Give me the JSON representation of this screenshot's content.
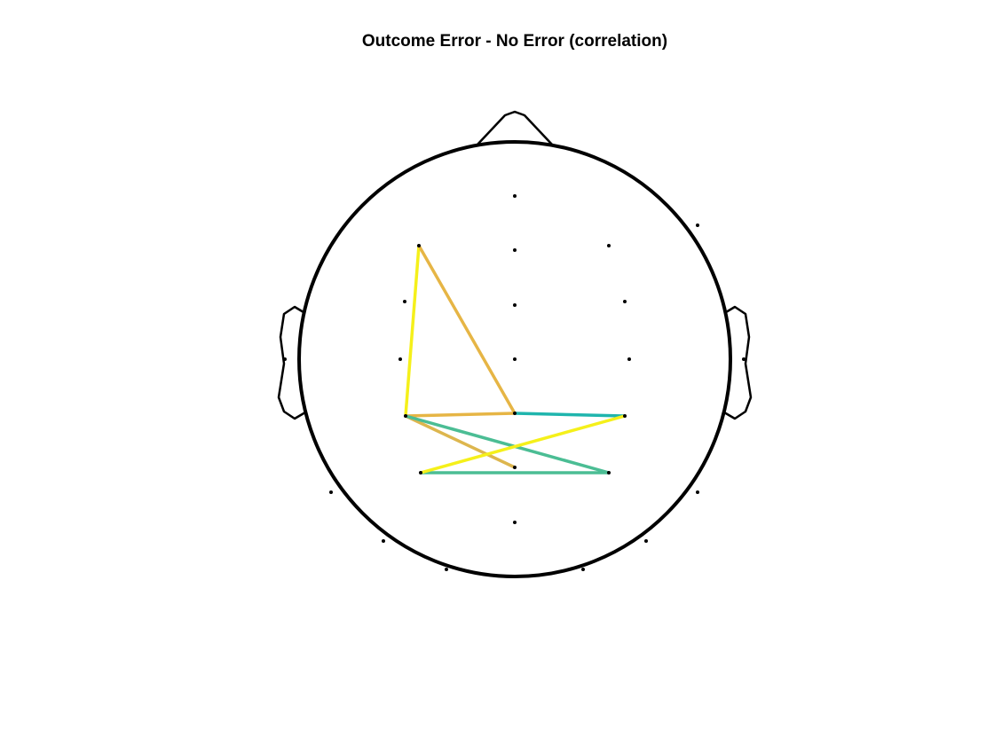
{
  "title": "Outcome Error - No Error (correlation)",
  "colors": {
    "outline": "#000000",
    "electrode": "#000000",
    "yellow": "#f5f01a",
    "orange": "#e6b545",
    "tan": "#ddb64e",
    "teal": "#1fb5ad",
    "green": "#4bbd94"
  },
  "electrodes": [
    "e1",
    "e2",
    "e3",
    "e4",
    "e5",
    "e6",
    "e7",
    "e8",
    "e9",
    "e10",
    "e11",
    "e12",
    "e13",
    "e14",
    "e15",
    "e16",
    "e17",
    "e18",
    "e19",
    "e20",
    "e21",
    "e22",
    "e23",
    "e24",
    "e25",
    "e26",
    "e27",
    "e28",
    "e29",
    "e30"
  ],
  "connections": [
    {
      "from": "e6",
      "to": "e13",
      "color": "yellow"
    },
    {
      "from": "e6",
      "to": "e16",
      "color": "orange"
    },
    {
      "from": "e13",
      "to": "e16",
      "color": "orange"
    },
    {
      "from": "e16",
      "to": "e17",
      "color": "teal"
    },
    {
      "from": "e13",
      "to": "e19",
      "color": "tan"
    },
    {
      "from": "e13",
      "to": "e20",
      "color": "green"
    },
    {
      "from": "e18",
      "to": "e20",
      "color": "green"
    },
    {
      "from": "e18",
      "to": "e17",
      "color": "yellow"
    }
  ]
}
